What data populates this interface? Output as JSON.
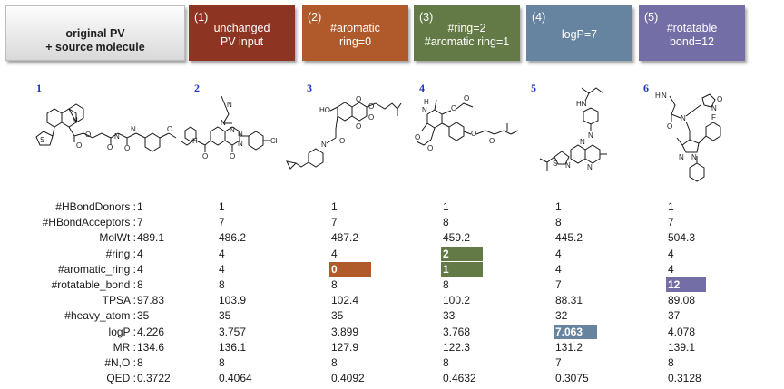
{
  "headers": [
    {
      "num": "",
      "lines": [
        "original PV",
        "+ source molecule"
      ],
      "color": "#e6e6e6"
    },
    {
      "num": "(1)",
      "lines": [
        "unchanged",
        "PV input"
      ],
      "color": "#8e3422"
    },
    {
      "num": "(2)",
      "lines": [
        "#aromatic",
        "ring=0"
      ],
      "color": "#b05a2c"
    },
    {
      "num": "(3)",
      "lines": [
        "#ring=2",
        "#aromatic ring=1"
      ],
      "color": "#647a46"
    },
    {
      "num": "(4)",
      "lines": [
        "logP=7"
      ],
      "color": "#66839f"
    },
    {
      "num": "(5)",
      "lines": [
        "#rotatable",
        "bond=12"
      ],
      "color": "#746ea6"
    }
  ],
  "molecules": [
    {
      "index": "1",
      "atoms": [
        "N",
        "S",
        "O",
        "O",
        "N",
        "O",
        "N",
        "O",
        "O"
      ]
    },
    {
      "index": "2",
      "atoms": [
        "N",
        "N",
        "N",
        "N",
        "N",
        "O",
        "O",
        "H",
        "Cl"
      ]
    },
    {
      "index": "3",
      "atoms": [
        "HO",
        "O",
        "O",
        "O",
        "O",
        "O",
        "N"
      ]
    },
    {
      "index": "4",
      "atoms": [
        "H",
        "N",
        "O",
        "O",
        "O",
        "O",
        "O",
        "O"
      ]
    },
    {
      "index": "5",
      "atoms": [
        "HN",
        "N",
        "N",
        "S",
        "N",
        "N"
      ]
    },
    {
      "index": "6",
      "atoms": [
        "H",
        "N",
        "O",
        "N",
        "F",
        "N",
        "N",
        "O",
        "N"
      ]
    }
  ],
  "property_labels": [
    "#HBondDonors :",
    "#HBondAcceptors :",
    "MolWt :",
    "#ring :",
    "#aromatic_ring :",
    "#rotatable_bond :",
    "TPSA :",
    "#heavy_atom :",
    "logP :",
    "MR :",
    "#N,O :",
    "QED :"
  ],
  "table": [
    [
      "1",
      "7",
      "489.1",
      "4",
      "4",
      "8",
      "97.83",
      "35",
      "4.226",
      "134.6",
      "8",
      "0.3722"
    ],
    [
      "1",
      "7",
      "486.2",
      "4",
      "4",
      "8",
      "103.9",
      "35",
      "3.757",
      "136.1",
      "8",
      "0.4064"
    ],
    [
      "1",
      "7",
      "487.2",
      "4",
      "0",
      "8",
      "102.4",
      "35",
      "3.899",
      "127.9",
      "8",
      "0.4092"
    ],
    [
      "1",
      "8",
      "459.2",
      "2",
      "1",
      "8",
      "100.2",
      "33",
      "3.768",
      "122.3",
      "8",
      "0.4632"
    ],
    [
      "1",
      "8",
      "445.2",
      "4",
      "4",
      "7",
      "88.31",
      "32",
      "7.063",
      "131.2",
      "7",
      "0.3075"
    ],
    [
      "1",
      "7",
      "504.3",
      "4",
      "4",
      "12",
      "89.08",
      "37",
      "4.078",
      "139.1",
      "8",
      "0.3128"
    ]
  ],
  "highlights": [
    {
      "col": 2,
      "row": 4,
      "color": "#b05a2c"
    },
    {
      "col": 3,
      "row": 3,
      "color": "#647a46"
    },
    {
      "col": 3,
      "row": 4,
      "color": "#647a46"
    },
    {
      "col": 4,
      "row": 8,
      "color": "#66839f"
    },
    {
      "col": 5,
      "row": 5,
      "color": "#746ea6"
    }
  ]
}
